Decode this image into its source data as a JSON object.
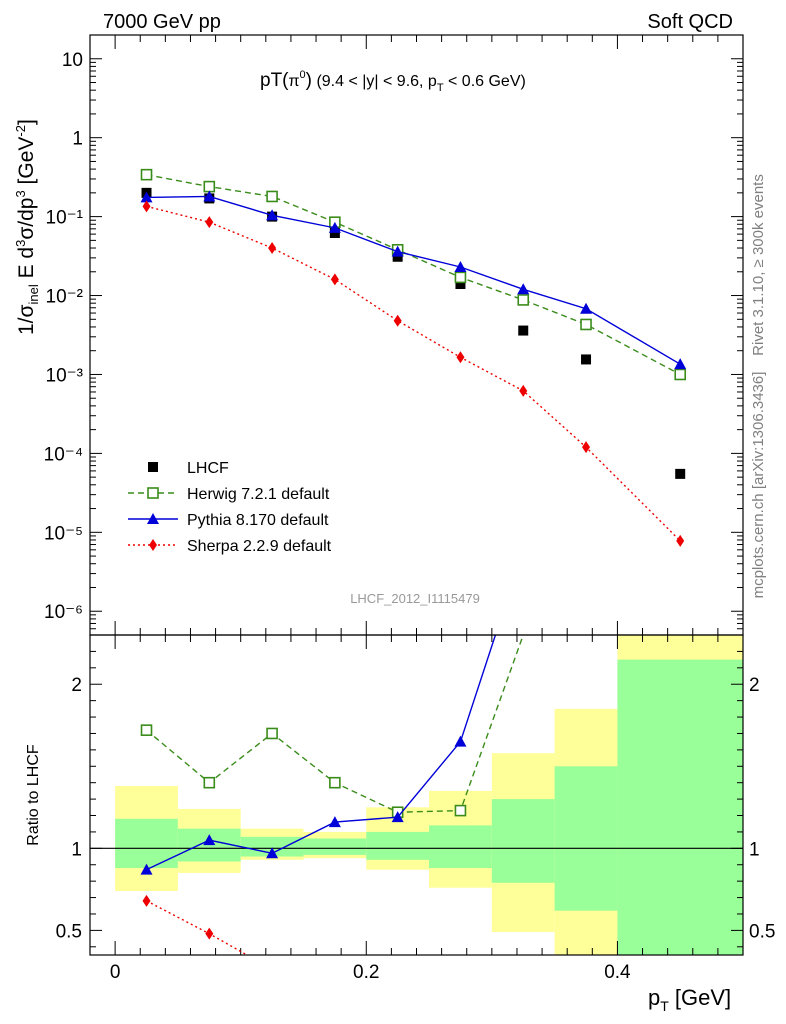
{
  "header": {
    "left": "7000 GeV pp",
    "right": "Soft QCD"
  },
  "side": {
    "rivet": "Rivet 3.1.10, ≥ 300k events",
    "url": "mcplots.cern.ch [arXiv:1306.3436]"
  },
  "analysis_id": "LHCF_2012_I1115479",
  "chart_data": [
    {
      "type": "scatter",
      "title": "pT(π⁰) (9.4 < |y| < 9.6, p_T < 0.6 GeV)",
      "ylabel": "1/σ_inel E d³σ/dp³ [GeV⁻²]",
      "yscale": "log",
      "xlim": [
        -0.02,
        0.5
      ],
      "ylim": [
        5e-07,
        20
      ],
      "y_tick_labels": [
        "10⁻⁶",
        "10⁻⁵",
        "10⁻⁴",
        "10⁻³",
        "10⁻²",
        "10⁻¹",
        "1",
        "10"
      ],
      "legend_position": "center-left",
      "x": [
        0.025,
        0.075,
        0.125,
        0.175,
        0.225,
        0.275,
        0.325,
        0.375,
        0.45
      ],
      "series": [
        {
          "name": "LHCF",
          "color": "#000000",
          "marker": "filled-square",
          "line": "none",
          "values": [
            0.2,
            0.17,
            0.1,
            0.062,
            0.031,
            0.014,
            0.0036,
            0.00155,
            5.5e-05
          ]
        },
        {
          "name": "Herwig 7.2.1 default",
          "color": "#3a8c1a",
          "marker": "open-square",
          "line": "dashed",
          "values": [
            0.34,
            0.24,
            0.18,
            0.085,
            0.038,
            0.017,
            0.0088,
            0.0043,
            0.001
          ]
        },
        {
          "name": "Pythia 8.170 default",
          "color": "#0000d8",
          "marker": "filled-triangle",
          "line": "solid",
          "values": [
            0.175,
            0.18,
            0.104,
            0.072,
            0.036,
            0.023,
            0.012,
            0.0068,
            0.00135
          ]
        },
        {
          "name": "Sherpa 2.2.9 default",
          "color": "#ee0000",
          "marker": "filled-diamond",
          "line": "dotted",
          "values": [
            0.135,
            0.085,
            0.04,
            0.016,
            0.0048,
            0.00165,
            0.00062,
            0.00012,
            7.8e-06
          ]
        }
      ]
    },
    {
      "type": "scatter",
      "ylabel": "Ratio to LHCF",
      "xlabel": "p_T [GeV]",
      "xlim": [
        -0.02,
        0.5
      ],
      "ylim": [
        0.35,
        2.3
      ],
      "x_tick_labels": [
        "0",
        "0.2",
        "0.4"
      ],
      "y_tick_labels": [
        "0.5",
        "1",
        "2"
      ],
      "reference_line": 1,
      "bands": {
        "bins": [
          [
            0.0,
            0.05
          ],
          [
            0.05,
            0.1
          ],
          [
            0.1,
            0.15
          ],
          [
            0.15,
            0.2
          ],
          [
            0.2,
            0.25
          ],
          [
            0.25,
            0.3
          ],
          [
            0.3,
            0.35
          ],
          [
            0.35,
            0.4
          ],
          [
            0.4,
            0.5
          ]
        ],
        "yellow": [
          [
            0.74,
            1.38
          ],
          [
            0.85,
            1.24
          ],
          [
            0.93,
            1.12
          ],
          [
            0.94,
            1.1
          ],
          [
            0.87,
            1.25
          ],
          [
            0.76,
            1.35
          ],
          [
            0.49,
            1.58
          ],
          [
            0.3,
            1.85
          ],
          [
            0.3,
            2.35
          ]
        ],
        "green": [
          [
            0.88,
            1.18
          ],
          [
            0.92,
            1.12
          ],
          [
            0.95,
            1.07
          ],
          [
            0.96,
            1.06
          ],
          [
            0.93,
            1.1
          ],
          [
            0.88,
            1.14
          ],
          [
            0.79,
            1.3
          ],
          [
            0.62,
            1.5
          ],
          [
            0.3,
            2.15
          ]
        ],
        "colors": {
          "yellow": "#ffff99",
          "green": "#99ff99"
        }
      },
      "series": [
        {
          "name": "Herwig 7.2.1 default",
          "color": "#3a8c1a",
          "marker": "open-square",
          "line": "dashed",
          "x": [
            0.025,
            0.075,
            0.125,
            0.175,
            0.225,
            0.275,
            0.325
          ],
          "values": [
            1.72,
            1.4,
            1.7,
            1.4,
            1.22,
            1.23,
            2.3
          ]
        },
        {
          "name": "Pythia 8.170 default",
          "color": "#0000d8",
          "marker": "filled-triangle",
          "line": "solid",
          "x": [
            0.025,
            0.075,
            0.125,
            0.175,
            0.225,
            0.275,
            0.305
          ],
          "values": [
            0.87,
            1.05,
            0.97,
            1.16,
            1.19,
            1.65,
            2.35
          ]
        },
        {
          "name": "Sherpa 2.2.9 default",
          "color": "#ee0000",
          "marker": "filled-diamond",
          "line": "dotted",
          "x": [
            0.025,
            0.075,
            0.105
          ],
          "values": [
            0.68,
            0.48,
            0.35
          ]
        }
      ]
    }
  ]
}
